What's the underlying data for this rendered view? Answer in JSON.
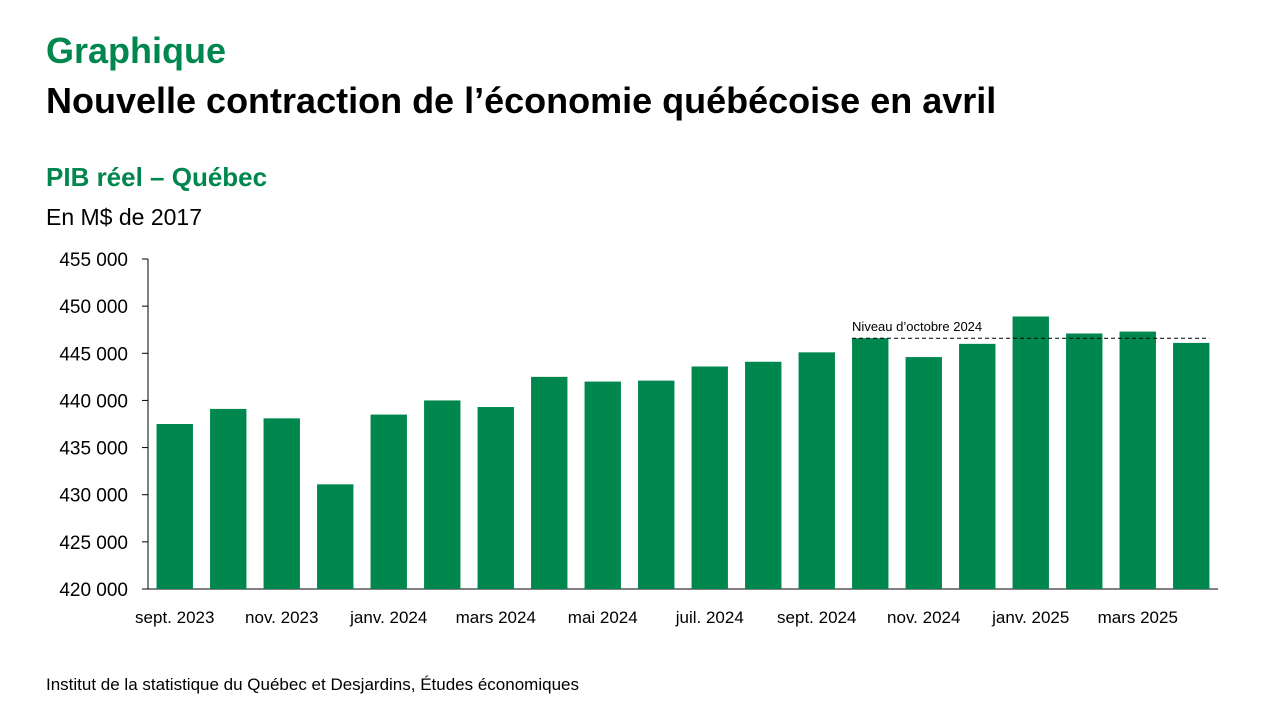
{
  "header": {
    "label": "Graphique",
    "title": "Nouvelle contraction de l’économie québécoise en avril"
  },
  "footer": {
    "source": "Institut de la statistique du Québec et Desjardins, Études économiques"
  },
  "colors": {
    "accent": "#00874E",
    "bar": "#00874E",
    "text": "#000000",
    "reference_line": "#000000"
  },
  "chart_data": {
    "type": "bar",
    "title": "PIB réel – Québec",
    "ylabel": "En M$ de 2017",
    "xlabel": "",
    "ylim": [
      420000,
      455000
    ],
    "yticks": [
      420000,
      425000,
      430000,
      435000,
      440000,
      445000,
      450000,
      455000
    ],
    "ytick_labels": [
      "420 000",
      "425 000",
      "430 000",
      "435 000",
      "440 000",
      "445 000",
      "450 000",
      "455 000"
    ],
    "grid": false,
    "categories": [
      "sept. 2023",
      "oct. 2023",
      "nov. 2023",
      "déc. 2023",
      "janv. 2024",
      "févr. 2024",
      "mars 2024",
      "avr. 2024",
      "mai 2024",
      "juin 2024",
      "juil. 2024",
      "août 2024",
      "sept. 2024",
      "oct. 2024",
      "nov. 2024",
      "déc. 2024",
      "janv. 2025",
      "févr. 2025",
      "mars 2025",
      "avr. 2025"
    ],
    "visible_category_labels": [
      "sept. 2023",
      "nov. 2023",
      "janv. 2024",
      "mars 2024",
      "mai 2024",
      "juil. 2024",
      "sept. 2024",
      "nov. 2024",
      "janv. 2025",
      "mars 2025"
    ],
    "values": [
      437500,
      439100,
      438100,
      431100,
      438500,
      440000,
      439300,
      442500,
      442000,
      442100,
      443600,
      444100,
      445100,
      446600,
      444600,
      446000,
      448900,
      447100,
      447300,
      446100
    ],
    "annotations": [
      {
        "text": "Niveau d’octobre 2024",
        "type": "reference_line",
        "value": 446600,
        "from_category": "oct. 2024",
        "to_category": "avr. 2025",
        "style": "dashed"
      }
    ]
  }
}
